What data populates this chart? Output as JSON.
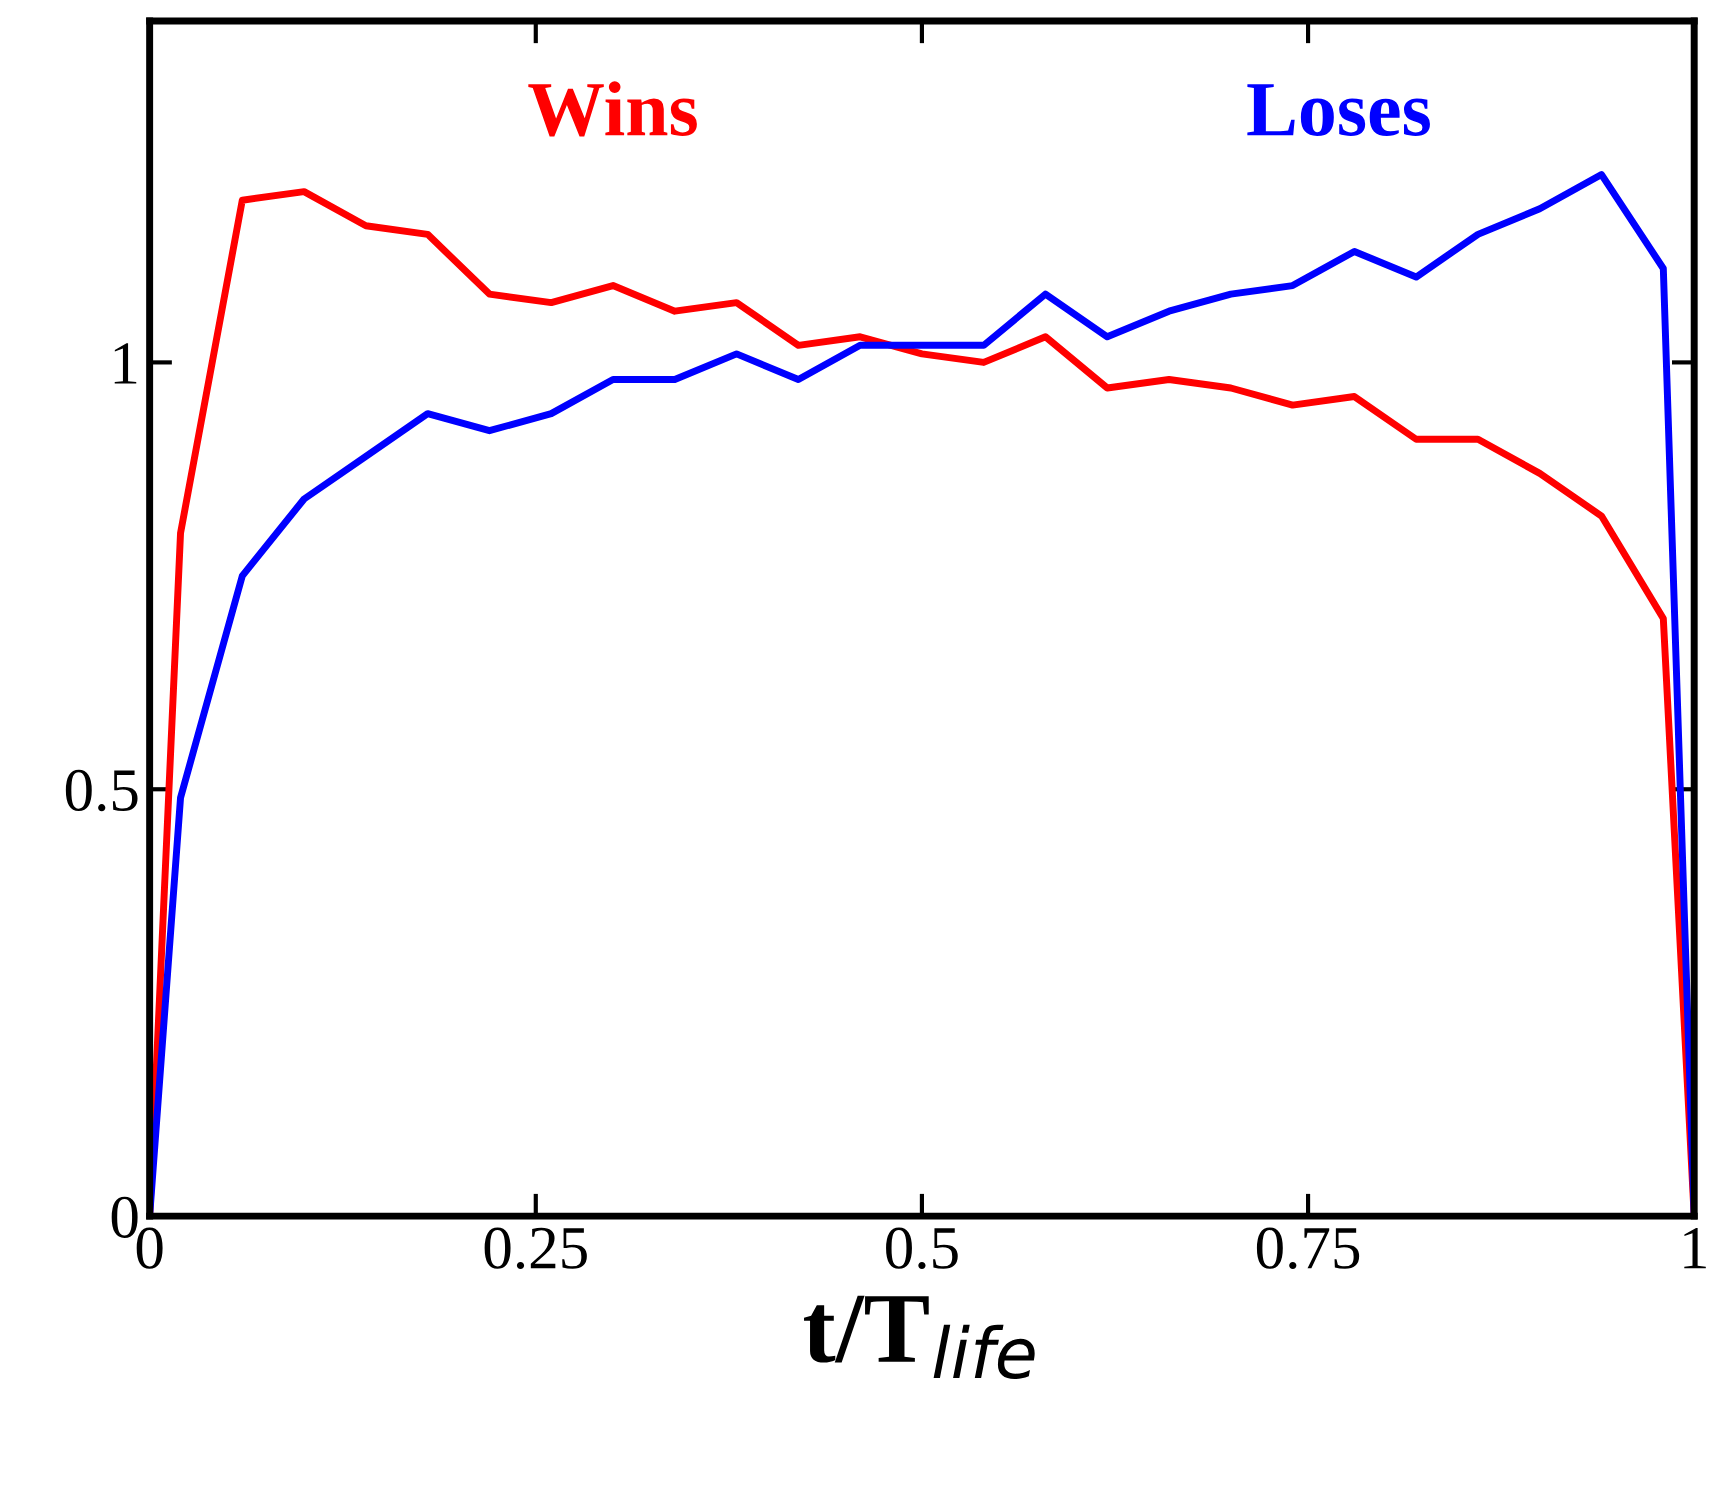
{
  "chart_data": {
    "type": "line",
    "xlabel": "t/T$_{life}$",
    "x": [
      0,
      0.02,
      0.06,
      0.1,
      0.14,
      0.18,
      0.22,
      0.26,
      0.3,
      0.34,
      0.38,
      0.42,
      0.46,
      0.5,
      0.54,
      0.58,
      0.62,
      0.66,
      0.7,
      0.74,
      0.78,
      0.82,
      0.86,
      0.9,
      0.94,
      0.98,
      1.0
    ],
    "series": [
      {
        "name": "Wins",
        "color": "#ff0000",
        "values": [
          0,
          0.8,
          1.19,
          1.2,
          1.16,
          1.15,
          1.08,
          1.07,
          1.09,
          1.06,
          1.07,
          1.02,
          1.03,
          1.01,
          1.0,
          1.03,
          0.97,
          0.98,
          0.97,
          0.95,
          0.96,
          0.91,
          0.91,
          0.87,
          0.82,
          0.7,
          0
        ]
      },
      {
        "name": "Loses",
        "color": "#0000ff",
        "values": [
          0,
          0.49,
          0.75,
          0.84,
          0.89,
          0.94,
          0.92,
          0.94,
          0.98,
          0.98,
          1.01,
          0.98,
          1.02,
          1.02,
          1.02,
          1.08,
          1.03,
          1.06,
          1.08,
          1.09,
          1.13,
          1.1,
          1.15,
          1.18,
          1.22,
          1.11,
          0
        ]
      }
    ],
    "xlim": [
      0,
      1
    ],
    "ylim": [
      0,
      1.4
    ],
    "xticks": [
      0,
      0.25,
      0.5,
      0.75,
      1
    ],
    "yticks": [
      0,
      0.5,
      1
    ],
    "grid": false,
    "legend": false,
    "marker": "none",
    "line_style": "solid"
  }
}
